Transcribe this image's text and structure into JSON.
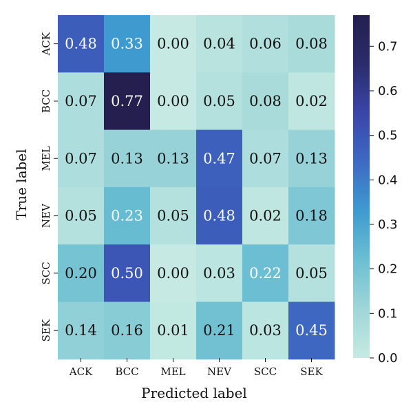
{
  "chart_data": {
    "type": "heatmap",
    "x_categories": [
      "ACK",
      "BCC",
      "MEL",
      "NEV",
      "SCC",
      "SEK"
    ],
    "y_categories": [
      "ACK",
      "BCC",
      "MEL",
      "NEV",
      "SCC",
      "SEK"
    ],
    "values": [
      [
        0.48,
        0.33,
        0.0,
        0.04,
        0.06,
        0.08
      ],
      [
        0.07,
        0.77,
        0.0,
        0.05,
        0.08,
        0.02
      ],
      [
        0.07,
        0.13,
        0.13,
        0.47,
        0.07,
        0.13
      ],
      [
        0.05,
        0.23,
        0.05,
        0.48,
        0.02,
        0.18
      ],
      [
        0.2,
        0.5,
        0.0,
        0.03,
        0.22,
        0.05
      ],
      [
        0.14,
        0.16,
        0.01,
        0.21,
        0.03,
        0.45
      ]
    ],
    "xlabel": "Predicted label",
    "ylabel": "True label",
    "colorbar": {
      "range": [
        0.0,
        0.77
      ],
      "ticks": [
        0.0,
        0.1,
        0.2,
        0.3,
        0.4,
        0.5,
        0.6,
        0.7
      ],
      "tick_labels": [
        "0.0",
        "0.1",
        "0.2",
        "0.3",
        "0.4",
        "0.5",
        "0.6",
        "0.7"
      ],
      "placement": "right"
    },
    "colormap": [
      "#c6eae3",
      "#9fd6d8",
      "#6cbfd2",
      "#3f9bcf",
      "#3d6ac3",
      "#3a46a8",
      "#2b2c6b",
      "#241f4e"
    ],
    "text_color_dark": "#111111",
    "text_color_light": "#ffffff"
  }
}
